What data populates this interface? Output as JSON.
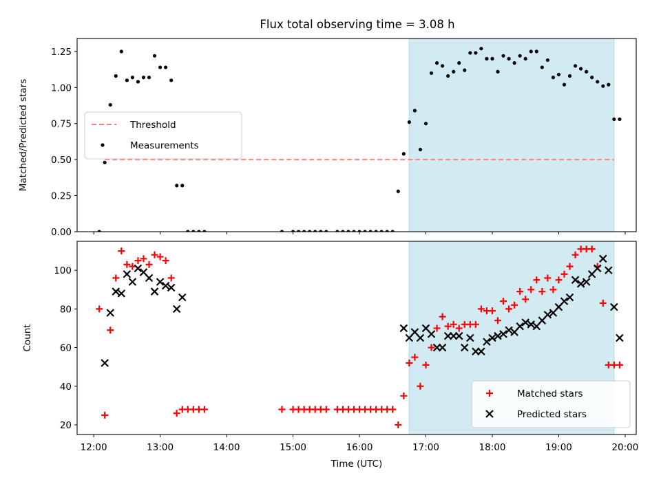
{
  "title": "Flux total observing time = 3.08 h",
  "colors": {
    "threshold": "#ff7f7f",
    "measurement": "#000000",
    "matched": "#ff0000",
    "predicted": "#000000",
    "span": "#add8e6"
  },
  "chart_data": [
    {
      "type": "scatter",
      "ylabel": "Matched/Predicted stars",
      "ylim": [
        0,
        1.34
      ],
      "yticks": [
        "0.00",
        "0.25",
        "0.50",
        "0.75",
        "1.00",
        "1.25"
      ],
      "yticks_values": [
        0,
        0.25,
        0.5,
        0.75,
        1.0,
        1.25
      ],
      "xlim": [
        "11:45",
        "20:10"
      ],
      "legend_position": "center-left",
      "shaded_span": [
        "16:45",
        "19:50"
      ],
      "threshold": {
        "name": "Threshold",
        "value": 0.5,
        "x": [
          "12:10",
          "19:50"
        ],
        "style": "dashed"
      },
      "series": [
        {
          "name": "Measurements",
          "x": [
            "12:05",
            "12:10",
            "12:15",
            "12:20",
            "12:25",
            "12:30",
            "12:35",
            "12:40",
            "12:45",
            "12:50",
            "12:55",
            "13:00",
            "13:05",
            "13:10",
            "13:15",
            "13:20",
            "13:25",
            "13:30",
            "13:35",
            "13:40",
            "14:50",
            "15:00",
            "15:05",
            "15:10",
            "15:15",
            "15:20",
            "15:25",
            "15:30",
            "15:40",
            "15:45",
            "15:50",
            "15:55",
            "16:00",
            "16:05",
            "16:10",
            "16:15",
            "16:20",
            "16:25",
            "16:30",
            "16:35",
            "16:40",
            "16:45",
            "16:50",
            "16:55",
            "17:00",
            "17:05",
            "17:10",
            "17:15",
            "17:20",
            "17:25",
            "17:30",
            "17:35",
            "17:40",
            "17:45",
            "17:50",
            "17:55",
            "18:00",
            "18:05",
            "18:10",
            "18:15",
            "18:20",
            "18:25",
            "18:30",
            "18:35",
            "18:40",
            "18:45",
            "18:50",
            "18:55",
            "19:00",
            "19:05",
            "19:10",
            "19:15",
            "19:20",
            "19:25",
            "19:30",
            "19:35",
            "19:40",
            "19:45",
            "19:50",
            "19:55"
          ],
          "y": [
            0,
            0.48,
            0.88,
            1.08,
            1.25,
            1.05,
            1.07,
            1.04,
            1.07,
            1.07,
            1.22,
            1.14,
            1.14,
            1.05,
            0.32,
            0.32,
            0,
            0,
            0,
            0,
            0,
            0,
            0,
            0,
            0,
            0,
            0,
            0,
            0,
            0,
            0,
            0,
            0,
            0,
            0,
            0,
            0,
            0,
            0,
            0.28,
            0.54,
            0.76,
            0.84,
            0.57,
            0.75,
            1.1,
            1.17,
            1.15,
            1.08,
            1.11,
            1.17,
            1.12,
            1.24,
            1.24,
            1.27,
            1.2,
            1.2,
            1.11,
            1.22,
            1.2,
            1.17,
            1.22,
            1.2,
            1.25,
            1.25,
            1.14,
            1.19,
            1.07,
            1.09,
            1.02,
            1.08,
            1.15,
            1.13,
            1.11,
            1.07,
            1.04,
            1.01,
            1.02,
            0.78,
            0.78
          ]
        }
      ]
    },
    {
      "type": "scatter",
      "ylabel": "Count",
      "xlabel": "Time (UTC)",
      "ylim": [
        15,
        115
      ],
      "yticks": [
        "20",
        "40",
        "60",
        "80",
        "100"
      ],
      "yticks_values": [
        20,
        40,
        60,
        80,
        100
      ],
      "xlim": [
        "11:45",
        "20:10"
      ],
      "xticks": [
        "12:00",
        "13:00",
        "14:00",
        "15:00",
        "16:00",
        "17:00",
        "18:00",
        "19:00",
        "20:00"
      ],
      "legend_position": "bottom-right",
      "shaded_span": [
        "16:45",
        "19:50"
      ],
      "series": [
        {
          "name": "Matched stars",
          "marker": "+",
          "x": [
            "12:05",
            "12:10",
            "12:15",
            "12:20",
            "12:25",
            "12:30",
            "12:35",
            "12:40",
            "12:45",
            "12:50",
            "12:55",
            "13:00",
            "13:05",
            "13:10",
            "13:15",
            "13:20",
            "13:25",
            "13:30",
            "13:35",
            "13:40",
            "14:50",
            "15:00",
            "15:05",
            "15:10",
            "15:15",
            "15:20",
            "15:25",
            "15:30",
            "15:40",
            "15:45",
            "15:50",
            "15:55",
            "16:00",
            "16:05",
            "16:10",
            "16:15",
            "16:20",
            "16:25",
            "16:30",
            "16:35",
            "16:40",
            "16:45",
            "16:50",
            "16:55",
            "17:00",
            "17:05",
            "17:10",
            "17:15",
            "17:20",
            "17:25",
            "17:30",
            "17:35",
            "17:40",
            "17:45",
            "17:50",
            "17:55",
            "18:00",
            "18:05",
            "18:10",
            "18:15",
            "18:20",
            "18:25",
            "18:30",
            "18:35",
            "18:40",
            "18:45",
            "18:50",
            "18:55",
            "19:00",
            "19:05",
            "19:10",
            "19:15",
            "19:20",
            "19:25",
            "19:30",
            "19:35",
            "19:40",
            "19:45",
            "19:50",
            "19:55"
          ],
          "y": [
            80,
            25,
            69,
            96,
            110,
            103,
            102,
            105,
            106,
            103,
            108,
            107,
            105,
            96,
            26,
            28,
            28,
            28,
            28,
            28,
            28,
            28,
            28,
            28,
            28,
            28,
            28,
            28,
            28,
            28,
            28,
            28,
            28,
            28,
            28,
            28,
            28,
            28,
            28,
            20,
            35,
            52,
            55,
            40,
            51,
            60,
            70,
            76,
            71,
            72,
            70,
            72,
            72,
            72,
            80,
            79,
            79,
            74,
            84,
            80,
            82,
            89,
            85,
            90,
            95,
            89,
            96,
            90,
            95,
            98,
            102,
            108,
            111,
            111,
            111,
            102,
            83,
            51,
            51,
            51
          ]
        },
        {
          "name": "Predicted stars",
          "marker": "x",
          "x": [
            "12:10",
            "12:15",
            "12:20",
            "12:25",
            "12:30",
            "12:35",
            "12:40",
            "12:45",
            "12:50",
            "12:55",
            "13:00",
            "13:05",
            "13:10",
            "13:15",
            "13:20",
            "16:40",
            "16:45",
            "16:50",
            "16:55",
            "17:00",
            "17:05",
            "17:10",
            "17:15",
            "17:20",
            "17:25",
            "17:30",
            "17:35",
            "17:40",
            "17:45",
            "17:50",
            "17:55",
            "18:00",
            "18:05",
            "18:10",
            "18:15",
            "18:20",
            "18:25",
            "18:30",
            "18:35",
            "18:40",
            "18:45",
            "18:50",
            "18:55",
            "19:00",
            "19:05",
            "19:10",
            "19:15",
            "19:20",
            "19:25",
            "19:30",
            "19:35",
            "19:40",
            "19:45",
            "19:50",
            "19:55"
          ],
          "y": [
            52,
            78,
            89,
            88,
            98,
            94,
            101,
            99,
            96,
            89,
            94,
            92,
            91,
            80,
            86,
            70,
            65,
            68,
            65,
            70,
            67,
            60,
            60,
            66,
            66,
            66,
            60,
            65,
            58,
            58,
            63,
            65,
            66,
            67,
            69,
            68,
            71,
            73,
            72,
            71,
            74,
            77,
            78,
            81,
            84,
            86,
            95,
            93,
            94,
            98,
            101,
            106,
            100,
            81,
            65
          ]
        }
      ]
    }
  ]
}
